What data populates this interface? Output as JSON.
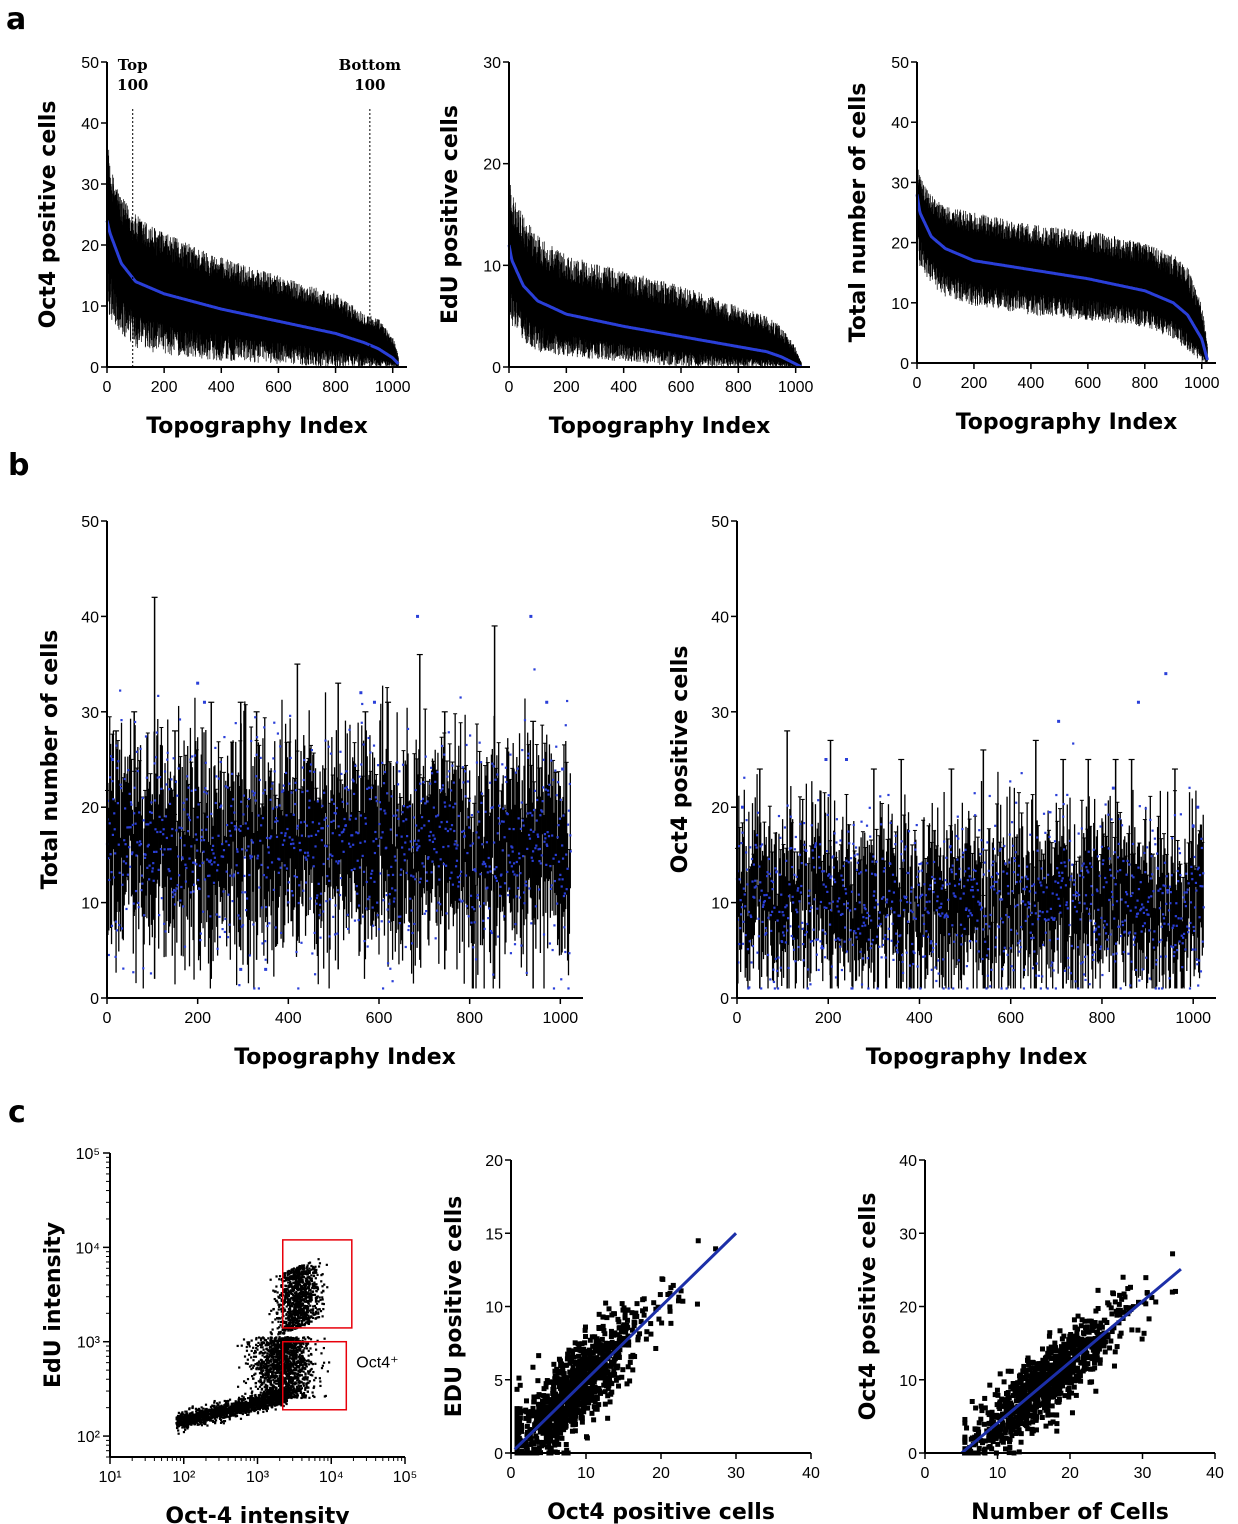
{
  "panel_labels": {
    "a": "a",
    "b": "b",
    "c": "c"
  },
  "colors": {
    "blue": "#2a3fd8",
    "black": "#000000",
    "gate": "#e8000b",
    "fitline": "#1c2fa8"
  },
  "chart_data": [
    {
      "id": "a1",
      "type": "line",
      "panel": "a",
      "xlabel": "Topography Index",
      "ylabel": "Oct4 positive cells",
      "xlim": [
        0,
        1050
      ],
      "ylim": [
        0,
        50
      ],
      "xticks": [
        0,
        200,
        400,
        600,
        800,
        1000
      ],
      "yticks": [
        0,
        10,
        20,
        30,
        40,
        50
      ],
      "mean_curve": {
        "x": [
          0,
          10,
          50,
          100,
          200,
          400,
          600,
          800,
          900,
          950,
          1000,
          1020
        ],
        "y": [
          24,
          22,
          17,
          14,
          12,
          9.5,
          7.5,
          5.5,
          4,
          3,
          1.5,
          0.5
        ]
      },
      "error_band": {
        "x": [
          0,
          10,
          50,
          100,
          200,
          400,
          600,
          800,
          900,
          950,
          1000,
          1020
        ],
        "upper": [
          40,
          33,
          28,
          25,
          22,
          18,
          15,
          12,
          9,
          8,
          5,
          2
        ],
        "lower": [
          10,
          8,
          5,
          3,
          2,
          1,
          0.5,
          0,
          0,
          0,
          0,
          0
        ]
      },
      "vlines": [
        {
          "x": 90,
          "label": [
            "Top",
            "100"
          ]
        },
        {
          "x": 920,
          "label": [
            "Bottom",
            "100"
          ]
        }
      ]
    },
    {
      "id": "a2",
      "type": "line",
      "panel": "a",
      "xlabel": "Topography Index",
      "ylabel": "EdU positive cells",
      "xlim": [
        0,
        1050
      ],
      "ylim": [
        0,
        30
      ],
      "xticks": [
        0,
        200,
        400,
        600,
        800,
        1000
      ],
      "yticks": [
        0,
        10,
        20,
        30
      ],
      "mean_curve": {
        "x": [
          0,
          10,
          50,
          100,
          200,
          400,
          600,
          800,
          900,
          950,
          1000,
          1020
        ],
        "y": [
          12,
          10.5,
          8,
          6.5,
          5.2,
          4,
          3,
          2,
          1.5,
          1,
          0.3,
          0
        ]
      },
      "error_band": {
        "x": [
          0,
          10,
          50,
          100,
          200,
          400,
          600,
          800,
          900,
          950,
          1000,
          1020
        ],
        "upper": [
          20,
          17,
          15,
          13,
          11,
          9.5,
          8,
          6,
          5,
          4,
          2,
          0.5
        ],
        "lower": [
          5,
          4,
          2.5,
          1.5,
          1,
          0.5,
          0,
          0,
          0,
          0,
          0,
          0
        ]
      },
      "vlines": []
    },
    {
      "id": "a3",
      "type": "line",
      "panel": "a",
      "xlabel": "Topography Index",
      "ylabel": "Total number of cells",
      "xlim": [
        0,
        1050
      ],
      "ylim": [
        0,
        50
      ],
      "xticks": [
        0,
        200,
        400,
        600,
        800,
        1000
      ],
      "yticks": [
        0,
        10,
        20,
        30,
        40,
        50
      ],
      "mean_curve": {
        "x": [
          0,
          10,
          50,
          100,
          200,
          400,
          600,
          800,
          900,
          950,
          1000,
          1020
        ],
        "y": [
          28,
          25,
          21,
          19,
          17,
          15.5,
          14,
          12,
          10,
          8,
          4,
          0.5
        ]
      },
      "error_band": {
        "x": [
          0,
          10,
          50,
          100,
          200,
          400,
          600,
          800,
          900,
          950,
          1000,
          1020
        ],
        "upper": [
          33,
          31,
          28,
          26,
          25,
          23,
          22,
          20,
          18,
          16,
          10,
          3
        ],
        "lower": [
          20,
          16,
          13,
          11,
          9.5,
          8,
          7,
          6,
          4,
          2,
          0,
          0
        ]
      },
      "vlines": []
    },
    {
      "id": "b1",
      "type": "scatter",
      "panel": "b",
      "xlabel": "Topography Index",
      "ylabel": "Total number of cells",
      "xlim": [
        0,
        1050
      ],
      "ylim": [
        0,
        50
      ],
      "xticks": [
        0,
        200,
        400,
        600,
        800,
        1000
      ],
      "yticks": [
        0,
        10,
        20,
        30,
        40,
        50
      ],
      "n_points": 1024,
      "mean_value": 16,
      "typical_sd": 5,
      "error_bars": {
        "x": [
          105,
          295,
          420,
          510,
          690,
          745,
          855,
          20,
          60,
          150,
          230,
          330,
          570,
          620,
          940
        ],
        "low": [
          2,
          5,
          6,
          3,
          4,
          3,
          2,
          8,
          9,
          11,
          2,
          4,
          6,
          9,
          1
        ],
        "high": [
          42,
          31,
          35,
          33,
          36,
          30,
          39,
          28,
          30,
          28,
          31,
          30,
          30,
          31,
          29
        ]
      },
      "outliers": {
        "x": [
          200,
          685,
          935,
          295,
          350,
          560,
          215,
          970,
          1005,
          12,
          590
        ],
        "y": [
          33,
          40,
          40,
          3,
          3,
          32,
          31,
          31,
          24,
          25,
          31
        ]
      }
    },
    {
      "id": "b2",
      "type": "scatter",
      "panel": "b",
      "xlabel": "Topography Index",
      "ylabel": "Oct4 positive cells",
      "xlim": [
        0,
        1050
      ],
      "ylim": [
        0,
        50
      ],
      "xticks": [
        0,
        200,
        400,
        600,
        800,
        1000
      ],
      "yticks": [
        0,
        10,
        20,
        30,
        40,
        50
      ],
      "n_points": 1024,
      "mean_value": 10,
      "typical_sd": 4,
      "error_bars": {
        "x": [
          110,
          205,
          360,
          470,
          655,
          715,
          770,
          865,
          960,
          50,
          300,
          540,
          830
        ],
        "low": [
          1,
          1,
          1,
          1,
          1,
          1,
          1,
          1,
          1,
          1,
          1,
          1,
          1
        ],
        "high": [
          28,
          27,
          25,
          24,
          27,
          25,
          25,
          25,
          24,
          24,
          24,
          26,
          25
        ]
      },
      "outliers": {
        "x": [
          940,
          880,
          705,
          195,
          1010,
          1000,
          240,
          825,
          12
        ],
        "y": [
          34,
          31,
          29,
          25,
          20,
          18,
          25,
          22,
          20
        ]
      }
    },
    {
      "id": "c1",
      "type": "scatter",
      "panel": "c",
      "xlabel": "Oct-4 intensity",
      "ylabel": "EdU intensity",
      "xscale": "log",
      "yscale": "log",
      "xlim": [
        10,
        100000
      ],
      "ylim": [
        60,
        100000
      ],
      "xticks": [
        "10¹",
        "10²",
        "10³",
        "10⁴",
        "10⁵"
      ],
      "yticks": [
        "10²",
        "10³",
        "10⁴",
        "10⁵"
      ],
      "gates": [
        {
          "x": [
            2200,
            19000
          ],
          "y": [
            1400,
            12000
          ],
          "label": ""
        },
        {
          "x": [
            2200,
            16000
          ],
          "y": [
            190,
            1000
          ],
          "label": "Oct4⁺"
        }
      ]
    },
    {
      "id": "c2",
      "type": "scatter",
      "panel": "c",
      "xlabel": "Oct4 positive cells",
      "ylabel": "EDU positive cells",
      "xlim": [
        0,
        40
      ],
      "ylim": [
        0,
        20
      ],
      "xticks": [
        0,
        10,
        20,
        30,
        40
      ],
      "yticks": [
        0,
        5,
        10,
        15,
        20
      ],
      "fit": {
        "slope": 0.5,
        "intercept": 0,
        "x": [
          0.5,
          30
        ]
      },
      "n_points": 1024
    },
    {
      "id": "c3",
      "type": "scatter",
      "panel": "c",
      "xlabel": "Number of Cells",
      "ylabel": "Oct4 positive cells",
      "xlim": [
        0,
        40
      ],
      "ylim": [
        0,
        40
      ],
      "xticks": [
        0,
        10,
        20,
        30,
        40
      ],
      "yticks": [
        0,
        10,
        20,
        30,
        40
      ],
      "fit": {
        "slope": 0.83,
        "intercept": -4.2,
        "x": [
          5,
          35.3
        ]
      },
      "n_points": 1024
    }
  ]
}
